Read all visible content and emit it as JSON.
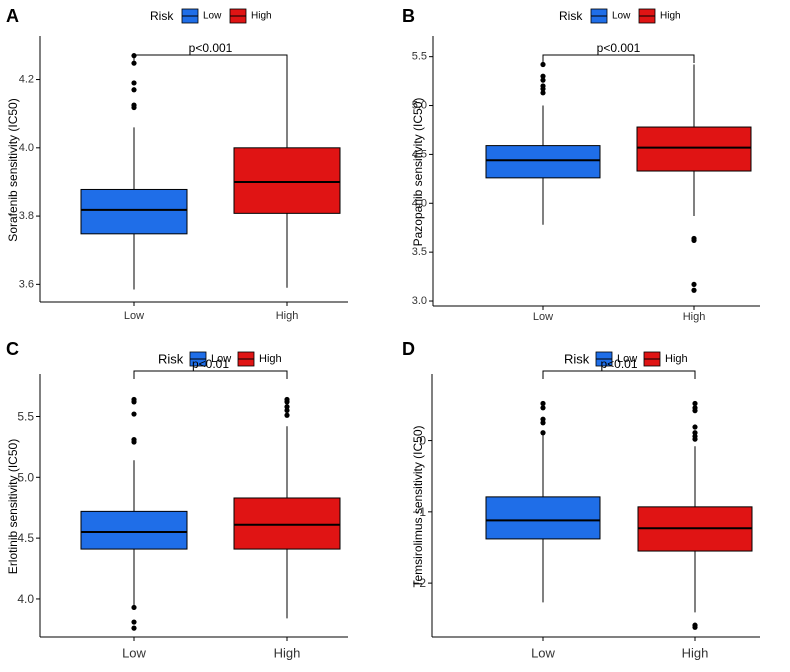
{
  "colors": {
    "low": "#1f6ee8",
    "high": "#e01414",
    "axis": "#000000"
  },
  "legend_title": "Risk",
  "chart_data": [
    {
      "panel": "A",
      "type": "boxplot",
      "ylabel": "Sorafenib sensitivity (IC50)",
      "ylim": [
        3.56,
        4.31
      ],
      "yticks": [
        3.6,
        3.8,
        4.0,
        4.2
      ],
      "ytick_labels": [
        "3.6",
        "3.8",
        "4.0",
        "4.2"
      ],
      "categories": [
        "Low",
        "High"
      ],
      "legend": [
        "Low",
        "High"
      ],
      "pvalue": "p<0.001",
      "boxes": [
        {
          "name": "Low",
          "whisker_low": 3.585,
          "q1": 3.748,
          "median": 3.818,
          "q3": 3.878,
          "whisker_high": 4.06,
          "outliers": [
            4.118,
            4.125,
            4.17,
            4.19,
            4.248,
            4.27
          ]
        },
        {
          "name": "High",
          "whisker_low": 3.59,
          "q1": 3.808,
          "median": 3.9,
          "q3": 4.0,
          "whisker_high": 4.27,
          "outliers": []
        }
      ]
    },
    {
      "panel": "B",
      "type": "boxplot",
      "ylabel": "Pazopanib sensitivity (IC50)",
      "ylim": [
        2.99,
        5.65
      ],
      "yticks": [
        3.0,
        3.5,
        4.0,
        4.5,
        5.0,
        5.5
      ],
      "ytick_labels": [
        "3.0",
        "3.5",
        "4.0",
        "4.5",
        "5.0",
        "5.5"
      ],
      "categories": [
        "Low",
        "High"
      ],
      "legend": [
        "Low",
        "High"
      ],
      "pvalue": "p<0.001",
      "boxes": [
        {
          "name": "Low",
          "whisker_low": 3.78,
          "q1": 4.26,
          "median": 4.44,
          "q3": 4.59,
          "whisker_high": 5.0,
          "outliers": [
            5.13,
            5.17,
            5.2,
            5.26,
            5.3,
            5.42
          ]
        },
        {
          "name": "High",
          "whisker_low": 3.87,
          "q1": 4.33,
          "median": 4.57,
          "q3": 4.78,
          "whisker_high": 5.42,
          "outliers": [
            3.11,
            3.17,
            3.62,
            3.64
          ]
        }
      ]
    },
    {
      "panel": "C",
      "type": "boxplot",
      "ylabel": "Erlotinib sensitivity (IC50)",
      "ylim": [
        3.72,
        5.8
      ],
      "yticks": [
        4.0,
        4.5,
        5.0,
        5.5
      ],
      "ytick_labels": [
        "4.0",
        "4.5",
        "5.0",
        "5.5"
      ],
      "categories": [
        "Low",
        "High"
      ],
      "legend": [
        "Low",
        "High"
      ],
      "pvalue": "p<0.01",
      "boxes": [
        {
          "name": "Low",
          "whisker_low": 3.94,
          "q1": 4.41,
          "median": 4.55,
          "q3": 4.72,
          "whisker_high": 5.14,
          "outliers": [
            3.76,
            3.81,
            3.93,
            5.29,
            5.31,
            5.52,
            5.62,
            5.64
          ]
        },
        {
          "name": "High",
          "whisker_low": 3.84,
          "q1": 4.41,
          "median": 4.61,
          "q3": 4.83,
          "whisker_high": 5.42,
          "outliers": [
            5.51,
            5.55,
            5.58,
            5.62,
            5.64
          ]
        }
      ]
    },
    {
      "panel": "D",
      "type": "boxplot",
      "ylabel": "Temsirolimus sensitivity (IC50)",
      "ylim": [
        -2.7,
        0.85
      ],
      "yticks": [
        -2,
        -1,
        0
      ],
      "ytick_labels": [
        "−2",
        "−1",
        "0"
      ],
      "categories": [
        "Low",
        "High"
      ],
      "legend": [
        "Low",
        "High"
      ],
      "pvalue": "p<0.01",
      "boxes": [
        {
          "name": "Low",
          "whisker_low": -2.27,
          "q1": -1.38,
          "median": -1.12,
          "q3": -0.79,
          "whisker_high": 0.09,
          "outliers": [
            0.11,
            0.25,
            0.3,
            0.46,
            0.52
          ]
        },
        {
          "name": "High",
          "whisker_low": -2.41,
          "q1": -1.55,
          "median": -1.23,
          "q3": -0.93,
          "whisker_high": -0.08,
          "outliers": [
            -2.59,
            -2.62,
            0.02,
            0.06,
            0.11,
            0.19,
            0.42,
            0.46,
            0.52
          ]
        }
      ]
    }
  ]
}
